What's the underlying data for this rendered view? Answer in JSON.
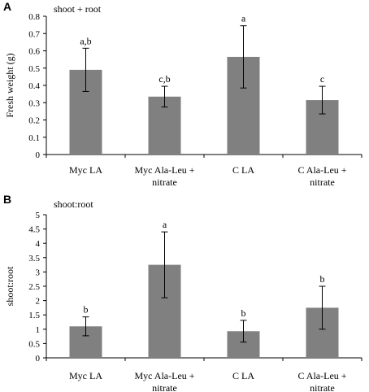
{
  "chart_data": [
    {
      "type": "bar",
      "panel_label": "A",
      "title": "shoot + root",
      "ylabel": "Fresh weight (g)",
      "xlabel": "",
      "ylim": [
        0,
        0.8
      ],
      "yticks": [
        "0",
        "0.1",
        "0.2",
        "0.3",
        "0.4",
        "0.5",
        "0.6",
        "0.7",
        "0.8"
      ],
      "categories": [
        [
          "Myc LA"
        ],
        [
          "Myc Ala-Leu +",
          "nitrate"
        ],
        [
          "C LA"
        ],
        [
          "C Ala-Leu +",
          "nitrate"
        ]
      ],
      "values": [
        0.49,
        0.335,
        0.565,
        0.315
      ],
      "errors": [
        0.125,
        0.06,
        0.18,
        0.08
      ],
      "significance": [
        "a,b",
        "c,b",
        "a",
        "c"
      ],
      "bar_color": "#808080",
      "grid": false
    },
    {
      "type": "bar",
      "panel_label": "B",
      "title": "shoot:root",
      "ylabel": "shoot:root",
      "xlabel": "",
      "ylim": [
        0,
        5
      ],
      "yticks": [
        "0",
        "0.5",
        "1",
        "1.5",
        "2",
        "2.5",
        "3",
        "3.5",
        "4",
        "4.5",
        "5"
      ],
      "categories": [
        [
          "Myc LA"
        ],
        [
          "Myc Ala-Leu +",
          "nitrate"
        ],
        [
          "C LA"
        ],
        [
          "C Ala-Leu +",
          "nitrate"
        ]
      ],
      "values": [
        1.1,
        3.25,
        0.93,
        1.75
      ],
      "errors": [
        0.33,
        1.15,
        0.38,
        0.75
      ],
      "significance": [
        "b",
        "a",
        "b",
        "b"
      ],
      "bar_color": "#808080",
      "grid": false
    }
  ]
}
